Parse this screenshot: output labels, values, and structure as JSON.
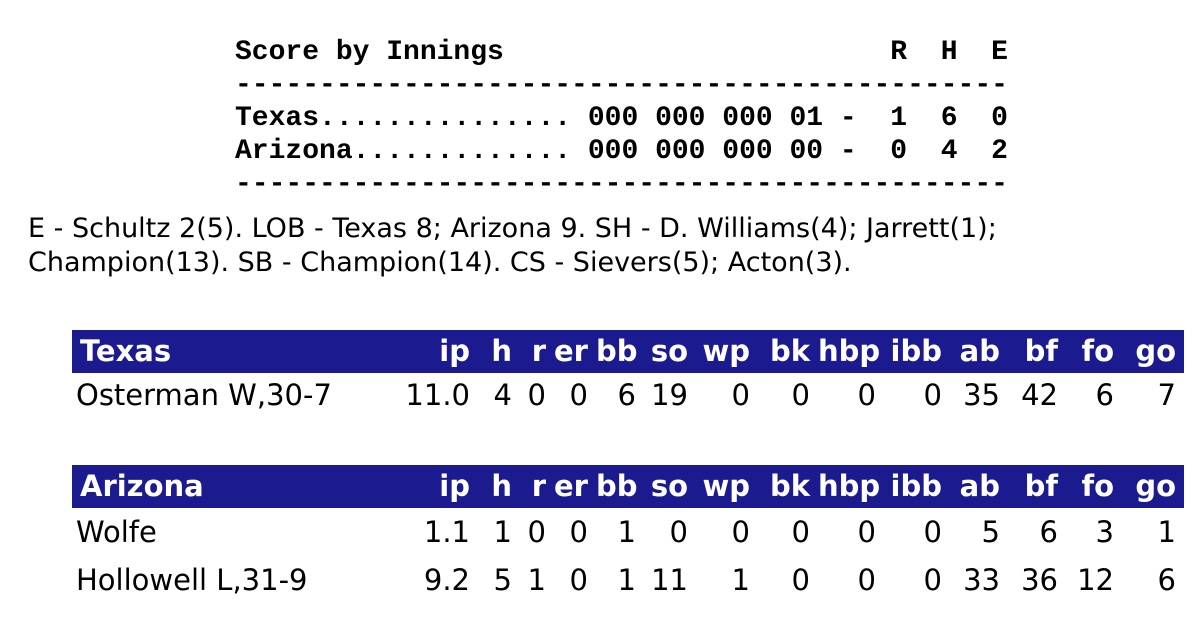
{
  "colors": {
    "header_bg": "#1b1b8f",
    "header_text": "#ffffff",
    "body_text": "#000000",
    "background": "#ffffff"
  },
  "scoreboard": {
    "lines": [
      "Score by Innings                       R  H  E",
      "----------------------------------------------",
      "Texas............... 000 000 000 01 -  1  6  0",
      "Arizona............. 000 000 000 00 -  0  4  2",
      "----------------------------------------------"
    ],
    "teams": [
      {
        "name": "Texas",
        "innings": "000 000 000 01",
        "runs": "1",
        "hits": "6",
        "errors": "0"
      },
      {
        "name": "Arizona",
        "innings": "000 000 000 00",
        "runs": "0",
        "hits": "4",
        "errors": "2"
      }
    ]
  },
  "notes": {
    "line1": "E - Schultz 2(5). LOB - Texas 8; Arizona 9. SH - D. Williams(4); Jarrett(1);",
    "line2": "Champion(13). SB - Champion(14). CS - Sievers(5); Acton(3)."
  },
  "pitching": {
    "columns": [
      "ip",
      "h",
      "r",
      "er",
      "bb",
      "so",
      "wp",
      "bk",
      "hbp",
      "ibb",
      "ab",
      "bf",
      "fo",
      "go"
    ],
    "texas": {
      "team": "Texas",
      "rows": [
        {
          "name": "Osterman W,30-7",
          "stats": [
            "11.0",
            "4",
            "0",
            "0",
            "6",
            "19",
            "0",
            "0",
            "0",
            "0",
            "35",
            "42",
            "6",
            "7"
          ]
        }
      ]
    },
    "arizona": {
      "team": "Arizona",
      "rows": [
        {
          "name": "Wolfe",
          "stats": [
            "1.1",
            "1",
            "0",
            "0",
            "1",
            "0",
            "0",
            "0",
            "0",
            "0",
            "5",
            "6",
            "3",
            "1"
          ]
        },
        {
          "name": "Hollowell L,31-9",
          "stats": [
            "9.2",
            "5",
            "1",
            "0",
            "1",
            "11",
            "1",
            "0",
            "0",
            "0",
            "33",
            "36",
            "12",
            "6"
          ]
        }
      ]
    }
  }
}
